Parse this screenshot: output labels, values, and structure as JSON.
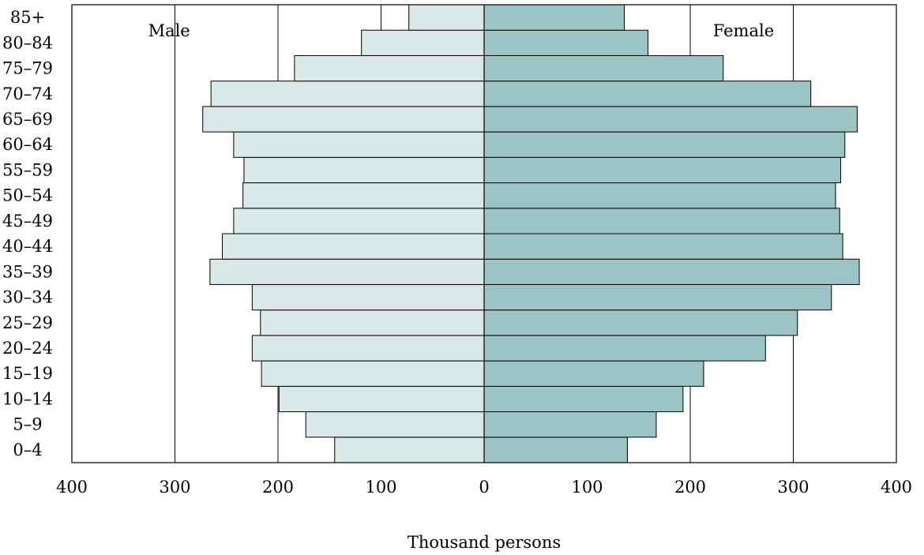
{
  "chart_data": {
    "type": "bar",
    "orientation": "horizontal",
    "layout": "population-pyramid",
    "categories": [
      "0–4",
      "5–9",
      "10–14",
      "15–19",
      "20–24",
      "25–29",
      "30–34",
      "35–39",
      "40–44",
      "45–49",
      "50–54",
      "55–59",
      "60–64",
      "65–69",
      "70–74",
      "75–79",
      "80–84",
      "85+"
    ],
    "series": [
      {
        "name": "Male",
        "side": "left",
        "color": "#dbe8e8",
        "values": [
          145,
          173,
          199,
          216,
          225,
          217,
          225,
          266,
          254,
          243,
          234,
          233,
          243,
          273,
          265,
          184,
          119,
          73
        ]
      },
      {
        "name": "Female",
        "side": "right",
        "color": "#9cc4c4",
        "values": [
          139,
          167,
          193,
          213,
          273,
          304,
          337,
          364,
          348,
          345,
          341,
          346,
          350,
          362,
          317,
          232,
          159,
          136
        ]
      }
    ],
    "side_labels": [
      "Male",
      "Female"
    ],
    "x_ticks": [
      "400",
      "300",
      "200",
      "100",
      "0",
      "100",
      "200",
      "300",
      "400"
    ],
    "xlim": [
      -400,
      400
    ],
    "xlabel": "Thousand persons",
    "ylabel": "",
    "grid": true,
    "grid_values": [
      -300,
      -200,
      -100,
      100,
      200,
      300
    ],
    "colors": {
      "male": "#dbe8e8",
      "female": "#9cc4c4",
      "stroke": "#000000"
    }
  }
}
